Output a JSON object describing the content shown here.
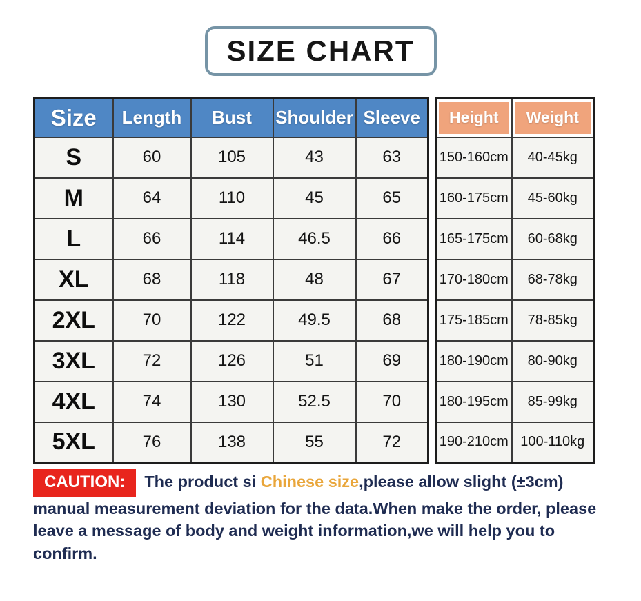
{
  "title": "SIZE CHART",
  "size_table": {
    "headers": {
      "size": "Size",
      "length": "Length",
      "bust": "Bust",
      "shoulder": "Shoulder",
      "sleeve": "Sleeve",
      "height": "Height",
      "weight": "Weight"
    },
    "rows": [
      {
        "size": "S",
        "length": "60",
        "bust": "105",
        "shoulder": "43",
        "sleeve": "63",
        "height": "150-160cm",
        "weight": "40-45kg"
      },
      {
        "size": "M",
        "length": "64",
        "bust": "110",
        "shoulder": "45",
        "sleeve": "65",
        "height": "160-175cm",
        "weight": "45-60kg"
      },
      {
        "size": "L",
        "length": "66",
        "bust": "114",
        "shoulder": "46.5",
        "sleeve": "66",
        "height": "165-175cm",
        "weight": "60-68kg"
      },
      {
        "size": "XL",
        "length": "68",
        "bust": "118",
        "shoulder": "48",
        "sleeve": "67",
        "height": "170-180cm",
        "weight": "68-78kg"
      },
      {
        "size": "2XL",
        "length": "70",
        "bust": "122",
        "shoulder": "49.5",
        "sleeve": "68",
        "height": "175-185cm",
        "weight": "78-85kg"
      },
      {
        "size": "3XL",
        "length": "72",
        "bust": "126",
        "shoulder": "51",
        "sleeve": "69",
        "height": "180-190cm",
        "weight": "80-90kg"
      },
      {
        "size": "4XL",
        "length": "74",
        "bust": "130",
        "shoulder": "52.5",
        "sleeve": "70",
        "height": "180-195cm",
        "weight": "85-99kg"
      },
      {
        "size": "5XL",
        "length": "76",
        "bust": "138",
        "shoulder": "55",
        "sleeve": "72",
        "height": "190-210cm",
        "weight": "100-110kg"
      }
    ]
  },
  "caution": {
    "label": "CAUTION:",
    "text_before": "The product si ",
    "highlight": "Chinese size",
    "text_after": ",please allow slight (±3cm) manual measurement deviation for the data.When make the order, please leave a message of body and weight information,we will help you to confirm."
  },
  "colors": {
    "header_blue": "#4f87c5",
    "header_orange": "#f0a47c",
    "title_border": "#7694a6",
    "caution_red": "#e8251d",
    "note_navy": "#1f2c52",
    "highlight_gold": "#e9a63b",
    "cell_background": "#f4f4f1"
  },
  "chart_data": {
    "type": "table",
    "title": "SIZE CHART",
    "columns": [
      "Size",
      "Length",
      "Bust",
      "Shoulder",
      "Sleeve",
      "Height",
      "Weight"
    ],
    "rows": [
      [
        "S",
        "60",
        "105",
        "43",
        "63",
        "150-160cm",
        "40-45kg"
      ],
      [
        "M",
        "64",
        "110",
        "45",
        "65",
        "160-175cm",
        "45-60kg"
      ],
      [
        "L",
        "66",
        "114",
        "46.5",
        "66",
        "165-175cm",
        "60-68kg"
      ],
      [
        "XL",
        "68",
        "118",
        "48",
        "67",
        "170-180cm",
        "68-78kg"
      ],
      [
        "2XL",
        "70",
        "122",
        "49.5",
        "68",
        "175-185cm",
        "78-85kg"
      ],
      [
        "3XL",
        "72",
        "126",
        "51",
        "69",
        "180-190cm",
        "80-90kg"
      ],
      [
        "4XL",
        "74",
        "130",
        "52.5",
        "70",
        "180-195cm",
        "85-99kg"
      ],
      [
        "5XL",
        "76",
        "138",
        "55",
        "72",
        "190-210cm",
        "100-110kg"
      ]
    ],
    "notes": "CAUTION: The product si Chinese size,please allow slight (±3cm) manual measurement deviation for the data.When make the order, please leave a message of body and weight information,we will help you to confirm."
  }
}
